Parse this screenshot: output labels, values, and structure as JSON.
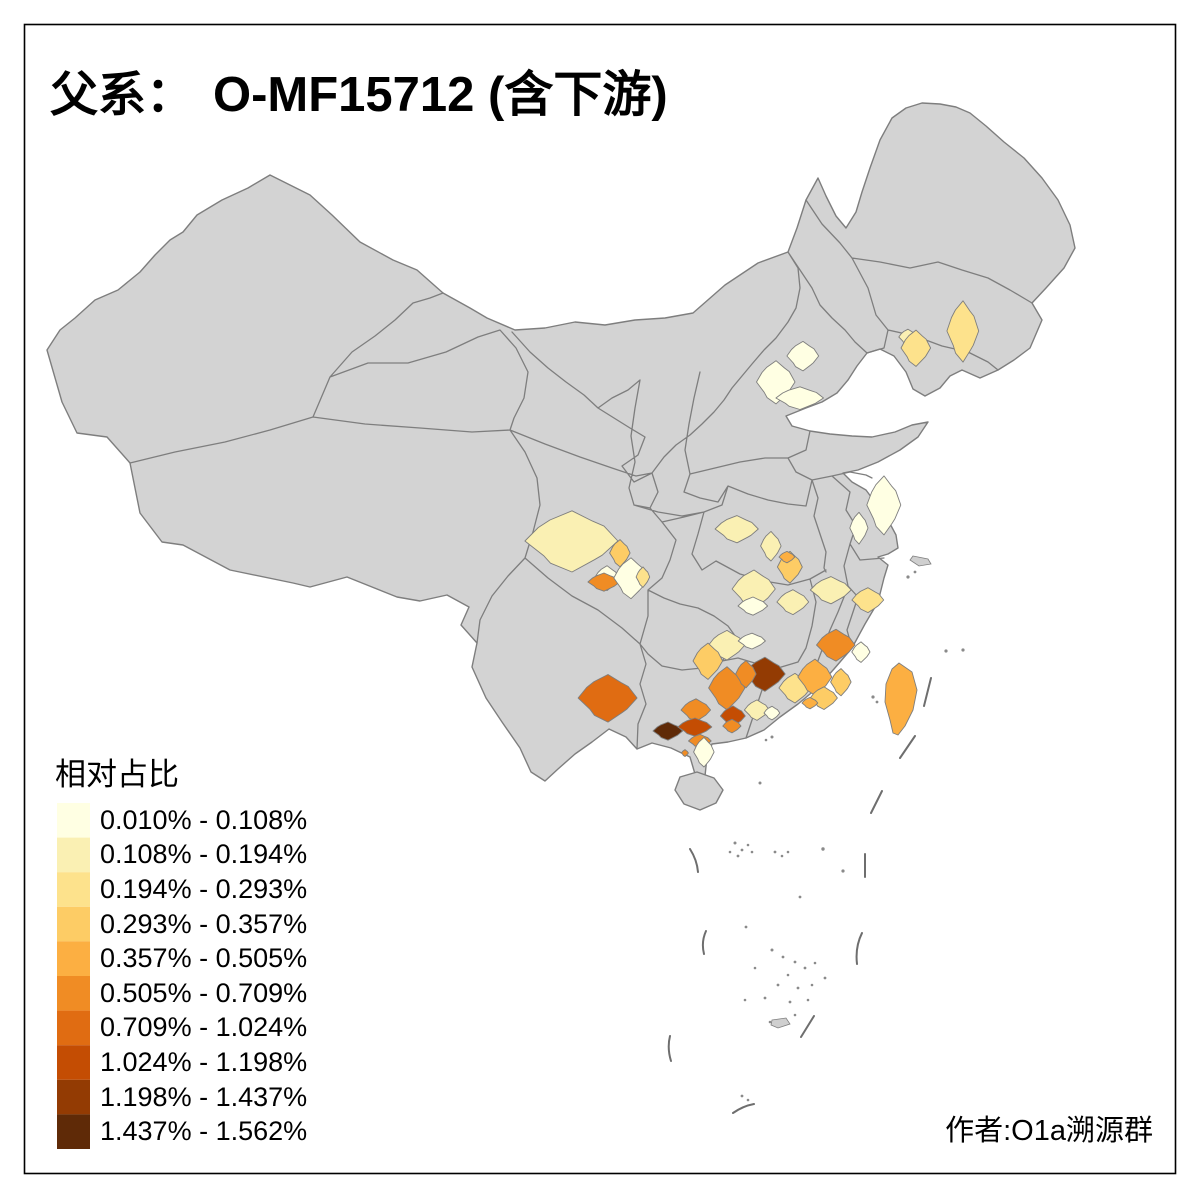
{
  "title": {
    "prefix": "父系：",
    "main": "O-MF15712 (含下游)"
  },
  "legend": {
    "title": "相对占比",
    "items": [
      {
        "label": "0.010% - 0.108%",
        "color": "#FFFFE3"
      },
      {
        "label": "0.108% - 0.194%",
        "color": "#FAF0B3"
      },
      {
        "label": "0.194% - 0.293%",
        "color": "#FDE28C"
      },
      {
        "label": "0.293% - 0.357%",
        "color": "#FDCC65"
      },
      {
        "label": "0.357% - 0.505%",
        "color": "#FCAF42"
      },
      {
        "label": "0.505% - 0.709%",
        "color": "#F08C24"
      },
      {
        "label": "0.709% - 1.024%",
        "color": "#E06C12"
      },
      {
        "label": "1.024% - 1.198%",
        "color": "#C44D03"
      },
      {
        "label": "1.198% - 1.437%",
        "color": "#933B03"
      },
      {
        "label": "1.437% - 1.562%",
        "color": "#5F2A07"
      }
    ]
  },
  "attribution": {
    "text": "作者:O1a溯源群"
  },
  "map": {
    "land_color": "#D3D3D3",
    "border_color": "#7E7E7E",
    "sea_color": "#FFFFFF",
    "frame_color": "#000000",
    "taiwan_category": 5
  }
}
